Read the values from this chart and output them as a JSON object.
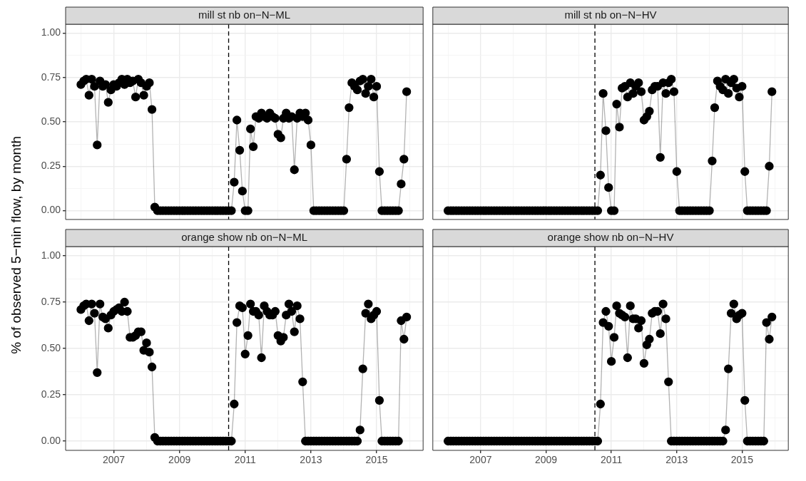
{
  "chart_data": [
    {
      "type": "line",
      "title": "mill st nb on−N−ML",
      "ylabel": "% of observed 5−min flow, by month",
      "marker": "circle",
      "line_style": "solid",
      "grid": true,
      "legend": false,
      "tick_labels": "y",
      "xlim": [
        "2005-07-15",
        "2016-06-01"
      ],
      "xticks": [
        {
          "value": "2006",
          "label": null
        },
        {
          "value": "2007",
          "label": null
        },
        {
          "value": "2008",
          "label": null
        },
        {
          "value": "2009",
          "label": null
        },
        {
          "value": "2010",
          "label": null
        },
        {
          "value": "2011",
          "label": null
        },
        {
          "value": "2012",
          "label": null
        },
        {
          "value": "2013",
          "label": null
        },
        {
          "value": "2014",
          "label": null
        },
        {
          "value": "2015",
          "label": null
        },
        {
          "value": "2016",
          "label": null
        }
      ],
      "ylim": [
        -0.05,
        1.05
      ],
      "yticks": [
        {
          "value": 0,
          "label": "0.00"
        },
        {
          "value": 0.125,
          "label": null
        },
        {
          "value": 0.25,
          "label": "0.25"
        },
        {
          "value": 0.375,
          "label": null
        },
        {
          "value": 0.5,
          "label": "0.50"
        },
        {
          "value": 0.625,
          "label": null
        },
        {
          "value": 0.75,
          "label": "0.75"
        },
        {
          "value": 0.875,
          "label": null
        },
        {
          "value": 1,
          "label": "1.00"
        }
      ],
      "ref_lines": [
        {
          "axis": "x",
          "value": "2010-07",
          "color": "#000000",
          "line_style": "dashed"
        }
      ],
      "x": [
        "2006-01",
        "2006-02",
        "2006-03",
        "2006-04",
        "2006-05",
        "2006-06",
        "2006-07",
        "2006-08",
        "2006-09",
        "2006-10",
        "2006-11",
        "2006-12",
        "2007-01",
        "2007-02",
        "2007-03",
        "2007-04",
        "2007-05",
        "2007-06",
        "2007-07",
        "2007-08",
        "2007-09",
        "2007-10",
        "2007-11",
        "2007-12",
        "2008-01",
        "2008-02",
        "2008-03",
        "2008-04",
        "2008-05",
        "2008-06",
        "2008-07",
        "2008-08",
        "2008-09",
        "2008-10",
        "2008-11",
        "2008-12",
        "2009-01",
        "2009-02",
        "2009-03",
        "2009-04",
        "2009-05",
        "2009-06",
        "2009-07",
        "2009-08",
        "2009-09",
        "2009-10",
        "2009-11",
        "2009-12",
        "2010-01",
        "2010-02",
        "2010-03",
        "2010-04",
        "2010-05",
        "2010-06",
        "2010-07",
        "2010-08",
        "2010-09",
        "2010-10",
        "2010-11",
        "2010-12",
        "2011-01",
        "2011-02",
        "2011-03",
        "2011-04",
        "2011-05",
        "2011-06",
        "2011-07",
        "2011-08",
        "2011-09",
        "2011-10",
        "2011-11",
        "2011-12",
        "2012-01",
        "2012-02",
        "2012-03",
        "2012-04",
        "2012-05",
        "2012-06",
        "2012-07",
        "2012-08",
        "2012-09",
        "2012-10",
        "2012-11",
        "2012-12",
        "2013-01",
        "2013-02",
        "2013-03",
        "2013-04",
        "2013-05",
        "2013-06",
        "2013-07",
        "2013-08",
        "2013-09",
        "2013-10",
        "2013-11",
        "2013-12",
        "2014-01",
        "2014-02",
        "2014-03",
        "2014-04",
        "2014-05",
        "2014-06",
        "2014-07",
        "2014-08",
        "2014-09",
        "2014-10",
        "2014-11",
        "2014-12",
        "2015-01",
        "2015-02",
        "2015-03",
        "2015-04",
        "2015-05",
        "2015-06",
        "2015-07",
        "2015-08",
        "2015-09",
        "2015-10",
        "2015-11",
        "2015-12"
      ],
      "series": [
        {
          "color": "#000000",
          "values": [
            0.71,
            0.73,
            0.74,
            0.65,
            0.74,
            0.7,
            0.37,
            0.73,
            0.7,
            0.71,
            0.61,
            0.68,
            0.71,
            0.7,
            0.72,
            0.74,
            0.71,
            0.74,
            0.72,
            0.73,
            0.64,
            0.74,
            0.72,
            0.65,
            0.7,
            0.72,
            0.57,
            0.02,
            0,
            0,
            0,
            0,
            0,
            0,
            0,
            0,
            0,
            0,
            0,
            0,
            0,
            0,
            0,
            0,
            0,
            0,
            0,
            0,
            0,
            0,
            0,
            0,
            0,
            0,
            0,
            0,
            0.16,
            0.51,
            0.34,
            0.11,
            0,
            0,
            0.46,
            0.36,
            0.53,
            0.52,
            0.55,
            0.53,
            0.52,
            0.55,
            0.53,
            0.52,
            0.43,
            0.41,
            0.52,
            0.55,
            0.52,
            0.53,
            0.23,
            0.52,
            0.55,
            0.53,
            0.55,
            0.51,
            0.37,
            0,
            0,
            0,
            0,
            0,
            0,
            0,
            0,
            0,
            0,
            0,
            0,
            0.29,
            0.58,
            0.72,
            0.7,
            0.68,
            0.73,
            0.74,
            0.66,
            0.7,
            0.74,
            0.64,
            0.7,
            0.22,
            0,
            0,
            0,
            0,
            0,
            0,
            0,
            0.15,
            0.29,
            0.67
          ]
        }
      ]
    },
    {
      "type": "line",
      "title": "mill st nb on−N−HV",
      "marker": "circle",
      "line_style": "solid",
      "grid": true,
      "legend": false,
      "tick_labels": false,
      "xlim": [
        "2005-07-15",
        "2016-06-01"
      ],
      "xticks": [
        {
          "value": "2006",
          "label": null
        },
        {
          "value": "2007",
          "label": null
        },
        {
          "value": "2008",
          "label": null
        },
        {
          "value": "2009",
          "label": null
        },
        {
          "value": "2010",
          "label": null
        },
        {
          "value": "2011",
          "label": null
        },
        {
          "value": "2012",
          "label": null
        },
        {
          "value": "2013",
          "label": null
        },
        {
          "value": "2014",
          "label": null
        },
        {
          "value": "2015",
          "label": null
        },
        {
          "value": "2016",
          "label": null
        }
      ],
      "ylim": [
        -0.05,
        1.05
      ],
      "yticks": [
        {
          "value": 0,
          "label": null
        },
        {
          "value": 0.125,
          "label": null
        },
        {
          "value": 0.25,
          "label": null
        },
        {
          "value": 0.375,
          "label": null
        },
        {
          "value": 0.5,
          "label": null
        },
        {
          "value": 0.625,
          "label": null
        },
        {
          "value": 0.75,
          "label": null
        },
        {
          "value": 0.875,
          "label": null
        },
        {
          "value": 1,
          "label": null
        }
      ],
      "ref_lines": [
        {
          "axis": "x",
          "value": "2010-07",
          "color": "#000000",
          "line_style": "dashed"
        }
      ],
      "x": [
        "2006-01",
        "2006-02",
        "2006-03",
        "2006-04",
        "2006-05",
        "2006-06",
        "2006-07",
        "2006-08",
        "2006-09",
        "2006-10",
        "2006-11",
        "2006-12",
        "2007-01",
        "2007-02",
        "2007-03",
        "2007-04",
        "2007-05",
        "2007-06",
        "2007-07",
        "2007-08",
        "2007-09",
        "2007-10",
        "2007-11",
        "2007-12",
        "2008-01",
        "2008-02",
        "2008-03",
        "2008-04",
        "2008-05",
        "2008-06",
        "2008-07",
        "2008-08",
        "2008-09",
        "2008-10",
        "2008-11",
        "2008-12",
        "2009-01",
        "2009-02",
        "2009-03",
        "2009-04",
        "2009-05",
        "2009-06",
        "2009-07",
        "2009-08",
        "2009-09",
        "2009-10",
        "2009-11",
        "2009-12",
        "2010-01",
        "2010-02",
        "2010-03",
        "2010-04",
        "2010-05",
        "2010-06",
        "2010-07",
        "2010-08",
        "2010-09",
        "2010-10",
        "2010-11",
        "2010-12",
        "2011-01",
        "2011-02",
        "2011-03",
        "2011-04",
        "2011-05",
        "2011-06",
        "2011-07",
        "2011-08",
        "2011-09",
        "2011-10",
        "2011-11",
        "2011-12",
        "2012-01",
        "2012-02",
        "2012-03",
        "2012-04",
        "2012-05",
        "2012-06",
        "2012-07",
        "2012-08",
        "2012-09",
        "2012-10",
        "2012-11",
        "2012-12",
        "2013-01",
        "2013-02",
        "2013-03",
        "2013-04",
        "2013-05",
        "2013-06",
        "2013-07",
        "2013-08",
        "2013-09",
        "2013-10",
        "2013-11",
        "2013-12",
        "2014-01",
        "2014-02",
        "2014-03",
        "2014-04",
        "2014-05",
        "2014-06",
        "2014-07",
        "2014-08",
        "2014-09",
        "2014-10",
        "2014-11",
        "2014-12",
        "2015-01",
        "2015-02",
        "2015-03",
        "2015-04",
        "2015-05",
        "2015-06",
        "2015-07",
        "2015-08",
        "2015-09",
        "2015-10",
        "2015-11",
        "2015-12"
      ],
      "series": [
        {
          "color": "#000000",
          "values": [
            0,
            0,
            0,
            0,
            0,
            0,
            0,
            0,
            0,
            0,
            0,
            0,
            0,
            0,
            0,
            0,
            0,
            0,
            0,
            0,
            0,
            0,
            0,
            0,
            0,
            0,
            0,
            0,
            0,
            0,
            0,
            0,
            0,
            0,
            0,
            0,
            0,
            0,
            0,
            0,
            0,
            0,
            0,
            0,
            0,
            0,
            0,
            0,
            0,
            0,
            0,
            0,
            0,
            0,
            0,
            0,
            0.2,
            0.66,
            0.45,
            0.13,
            0,
            0,
            0.6,
            0.47,
            0.69,
            0.7,
            0.64,
            0.72,
            0.66,
            0.7,
            0.72,
            0.67,
            0.51,
            0.53,
            0.56,
            0.68,
            0.7,
            0.7,
            0.3,
            0.72,
            0.66,
            0.72,
            0.74,
            0.67,
            0.22,
            0,
            0,
            0,
            0,
            0,
            0,
            0,
            0,
            0,
            0,
            0,
            0,
            0.28,
            0.58,
            0.73,
            0.7,
            0.68,
            0.74,
            0.66,
            0.72,
            0.74,
            0.69,
            0.64,
            0.7,
            0.22,
            0,
            0,
            0,
            0,
            0,
            0,
            0,
            0,
            0.25,
            0.67
          ]
        }
      ]
    },
    {
      "type": "line",
      "title": "orange show nb on−N−ML",
      "marker": "circle",
      "line_style": "solid",
      "grid": true,
      "legend": false,
      "xlim": [
        "2005-07-15",
        "2016-06-01"
      ],
      "xticks": [
        {
          "value": "2006",
          "label": null
        },
        "2007",
        {
          "value": "2008",
          "label": null
        },
        "2009",
        {
          "value": "2010",
          "label": null
        },
        "2011",
        {
          "value": "2012",
          "label": null
        },
        "2013",
        {
          "value": "2014",
          "label": null
        },
        "2015",
        {
          "value": "2016",
          "label": null
        }
      ],
      "ylim": [
        -0.05,
        1.05
      ],
      "yticks": [
        {
          "value": 0,
          "label": "0.00"
        },
        {
          "value": 0.125,
          "label": null
        },
        {
          "value": 0.25,
          "label": "0.25"
        },
        {
          "value": 0.375,
          "label": null
        },
        {
          "value": 0.5,
          "label": "0.50"
        },
        {
          "value": 0.625,
          "label": null
        },
        {
          "value": 0.75,
          "label": "0.75"
        },
        {
          "value": 0.875,
          "label": null
        },
        {
          "value": 1,
          "label": "1.00"
        }
      ],
      "ref_lines": [
        {
          "axis": "x",
          "value": "2010-07",
          "color": "#000000",
          "line_style": "dashed"
        }
      ],
      "x": [
        "2006-01",
        "2006-02",
        "2006-03",
        "2006-04",
        "2006-05",
        "2006-06",
        "2006-07",
        "2006-08",
        "2006-09",
        "2006-10",
        "2006-11",
        "2006-12",
        "2007-01",
        "2007-02",
        "2007-03",
        "2007-04",
        "2007-05",
        "2007-06",
        "2007-07",
        "2007-08",
        "2007-09",
        "2007-10",
        "2007-11",
        "2007-12",
        "2008-01",
        "2008-02",
        "2008-03",
        "2008-04",
        "2008-05",
        "2008-06",
        "2008-07",
        "2008-08",
        "2008-09",
        "2008-10",
        "2008-11",
        "2008-12",
        "2009-01",
        "2009-02",
        "2009-03",
        "2009-04",
        "2009-05",
        "2009-06",
        "2009-07",
        "2009-08",
        "2009-09",
        "2009-10",
        "2009-11",
        "2009-12",
        "2010-01",
        "2010-02",
        "2010-03",
        "2010-04",
        "2010-05",
        "2010-06",
        "2010-07",
        "2010-08",
        "2010-09",
        "2010-10",
        "2010-11",
        "2010-12",
        "2011-01",
        "2011-02",
        "2011-03",
        "2011-04",
        "2011-05",
        "2011-06",
        "2011-07",
        "2011-08",
        "2011-09",
        "2011-10",
        "2011-11",
        "2011-12",
        "2012-01",
        "2012-02",
        "2012-03",
        "2012-04",
        "2012-05",
        "2012-06",
        "2012-07",
        "2012-08",
        "2012-09",
        "2012-10",
        "2012-11",
        "2012-12",
        "2013-01",
        "2013-02",
        "2013-03",
        "2013-04",
        "2013-05",
        "2013-06",
        "2013-07",
        "2013-08",
        "2013-09",
        "2013-10",
        "2013-11",
        "2013-12",
        "2014-01",
        "2014-02",
        "2014-03",
        "2014-04",
        "2014-05",
        "2014-06",
        "2014-07",
        "2014-08",
        "2014-09",
        "2014-10",
        "2014-11",
        "2014-12",
        "2015-01",
        "2015-02",
        "2015-03",
        "2015-04",
        "2015-05",
        "2015-06",
        "2015-07",
        "2015-08",
        "2015-09",
        "2015-10",
        "2015-11",
        "2015-12"
      ],
      "series": [
        {
          "color": "#000000",
          "values": [
            0.71,
            0.73,
            0.74,
            0.65,
            0.74,
            0.69,
            0.37,
            0.74,
            0.67,
            0.66,
            0.61,
            0.68,
            0.7,
            0.71,
            0.72,
            0.7,
            0.75,
            0.7,
            0.56,
            0.56,
            0.57,
            0.59,
            0.59,
            0.49,
            0.53,
            0.48,
            0.4,
            0.02,
            0,
            0,
            0,
            0,
            0,
            0,
            0,
            0,
            0,
            0,
            0,
            0,
            0,
            0,
            0,
            0,
            0,
            0,
            0,
            0,
            0,
            0,
            0,
            0,
            0,
            0,
            0,
            0,
            0.2,
            0.64,
            0.73,
            0.72,
            0.47,
            0.57,
            0.74,
            0.7,
            0.7,
            0.68,
            0.45,
            0.73,
            0.7,
            0.68,
            0.68,
            0.7,
            0.57,
            0.54,
            0.56,
            0.68,
            0.74,
            0.7,
            0.59,
            0.73,
            0.66,
            0.32,
            0,
            0,
            0,
            0,
            0,
            0,
            0,
            0,
            0,
            0,
            0,
            0,
            0,
            0,
            0,
            0,
            0,
            0,
            0,
            0,
            0.06,
            0.39,
            0.69,
            0.74,
            0.66,
            0.68,
            0.7,
            0.22,
            0,
            0,
            0,
            0,
            0,
            0,
            0,
            0.65,
            0.55,
            0.67
          ]
        }
      ]
    },
    {
      "type": "line",
      "title": "orange show nb on−N−HV",
      "marker": "circle",
      "line_style": "solid",
      "grid": true,
      "legend": false,
      "tick_labels": "x",
      "xlim": [
        "2005-07-15",
        "2016-06-01"
      ],
      "xticks": [
        {
          "value": "2006",
          "label": null
        },
        "2007",
        {
          "value": "2008",
          "label": null
        },
        "2009",
        {
          "value": "2010",
          "label": null
        },
        "2011",
        {
          "value": "2012",
          "label": null
        },
        "2013",
        {
          "value": "2014",
          "label": null
        },
        "2015",
        {
          "value": "2016",
          "label": null
        }
      ],
      "ylim": [
        -0.05,
        1.05
      ],
      "yticks": [
        {
          "value": 0,
          "label": null
        },
        {
          "value": 0.125,
          "label": null
        },
        {
          "value": 0.25,
          "label": null
        },
        {
          "value": 0.375,
          "label": null
        },
        {
          "value": 0.5,
          "label": null
        },
        {
          "value": 0.625,
          "label": null
        },
        {
          "value": 0.75,
          "label": null
        },
        {
          "value": 0.875,
          "label": null
        },
        {
          "value": 1,
          "label": null
        }
      ],
      "ref_lines": [
        {
          "axis": "x",
          "value": "2010-07",
          "color": "#000000",
          "line_style": "dashed"
        }
      ],
      "x": [
        "2006-01",
        "2006-02",
        "2006-03",
        "2006-04",
        "2006-05",
        "2006-06",
        "2006-07",
        "2006-08",
        "2006-09",
        "2006-10",
        "2006-11",
        "2006-12",
        "2007-01",
        "2007-02",
        "2007-03",
        "2007-04",
        "2007-05",
        "2007-06",
        "2007-07",
        "2007-08",
        "2007-09",
        "2007-10",
        "2007-11",
        "2007-12",
        "2008-01",
        "2008-02",
        "2008-03",
        "2008-04",
        "2008-05",
        "2008-06",
        "2008-07",
        "2008-08",
        "2008-09",
        "2008-10",
        "2008-11",
        "2008-12",
        "2009-01",
        "2009-02",
        "2009-03",
        "2009-04",
        "2009-05",
        "2009-06",
        "2009-07",
        "2009-08",
        "2009-09",
        "2009-10",
        "2009-11",
        "2009-12",
        "2010-01",
        "2010-02",
        "2010-03",
        "2010-04",
        "2010-05",
        "2010-06",
        "2010-07",
        "2010-08",
        "2010-09",
        "2010-10",
        "2010-11",
        "2010-12",
        "2011-01",
        "2011-02",
        "2011-03",
        "2011-04",
        "2011-05",
        "2011-06",
        "2011-07",
        "2011-08",
        "2011-09",
        "2011-10",
        "2011-11",
        "2011-12",
        "2012-01",
        "2012-02",
        "2012-03",
        "2012-04",
        "2012-05",
        "2012-06",
        "2012-07",
        "2012-08",
        "2012-09",
        "2012-10",
        "2012-11",
        "2012-12",
        "2013-01",
        "2013-02",
        "2013-03",
        "2013-04",
        "2013-05",
        "2013-06",
        "2013-07",
        "2013-08",
        "2013-09",
        "2013-10",
        "2013-11",
        "2013-12",
        "2014-01",
        "2014-02",
        "2014-03",
        "2014-04",
        "2014-05",
        "2014-06",
        "2014-07",
        "2014-08",
        "2014-09",
        "2014-10",
        "2014-11",
        "2014-12",
        "2015-01",
        "2015-02",
        "2015-03",
        "2015-04",
        "2015-05",
        "2015-06",
        "2015-07",
        "2015-08",
        "2015-09",
        "2015-10",
        "2015-11",
        "2015-12"
      ],
      "series": [
        {
          "color": "#000000",
          "values": [
            0,
            0,
            0,
            0,
            0,
            0,
            0,
            0,
            0,
            0,
            0,
            0,
            0,
            0,
            0,
            0,
            0,
            0,
            0,
            0,
            0,
            0,
            0,
            0,
            0,
            0,
            0,
            0,
            0,
            0,
            0,
            0,
            0,
            0,
            0,
            0,
            0,
            0,
            0,
            0,
            0,
            0,
            0,
            0,
            0,
            0,
            0,
            0,
            0,
            0,
            0,
            0,
            0,
            0,
            0,
            0,
            0.2,
            0.64,
            0.7,
            0.62,
            0.43,
            0.56,
            0.73,
            0.69,
            0.68,
            0.67,
            0.45,
            0.73,
            0.66,
            0.66,
            0.61,
            0.65,
            0.42,
            0.52,
            0.55,
            0.69,
            0.7,
            0.7,
            0.58,
            0.74,
            0.66,
            0.32,
            0,
            0,
            0,
            0,
            0,
            0,
            0,
            0,
            0,
            0,
            0,
            0,
            0,
            0,
            0,
            0,
            0,
            0,
            0,
            0,
            0.06,
            0.39,
            0.69,
            0.74,
            0.66,
            0.68,
            0.69,
            0.22,
            0,
            0,
            0,
            0,
            0,
            0,
            0,
            0.64,
            0.55,
            0.67
          ]
        }
      ]
    }
  ]
}
